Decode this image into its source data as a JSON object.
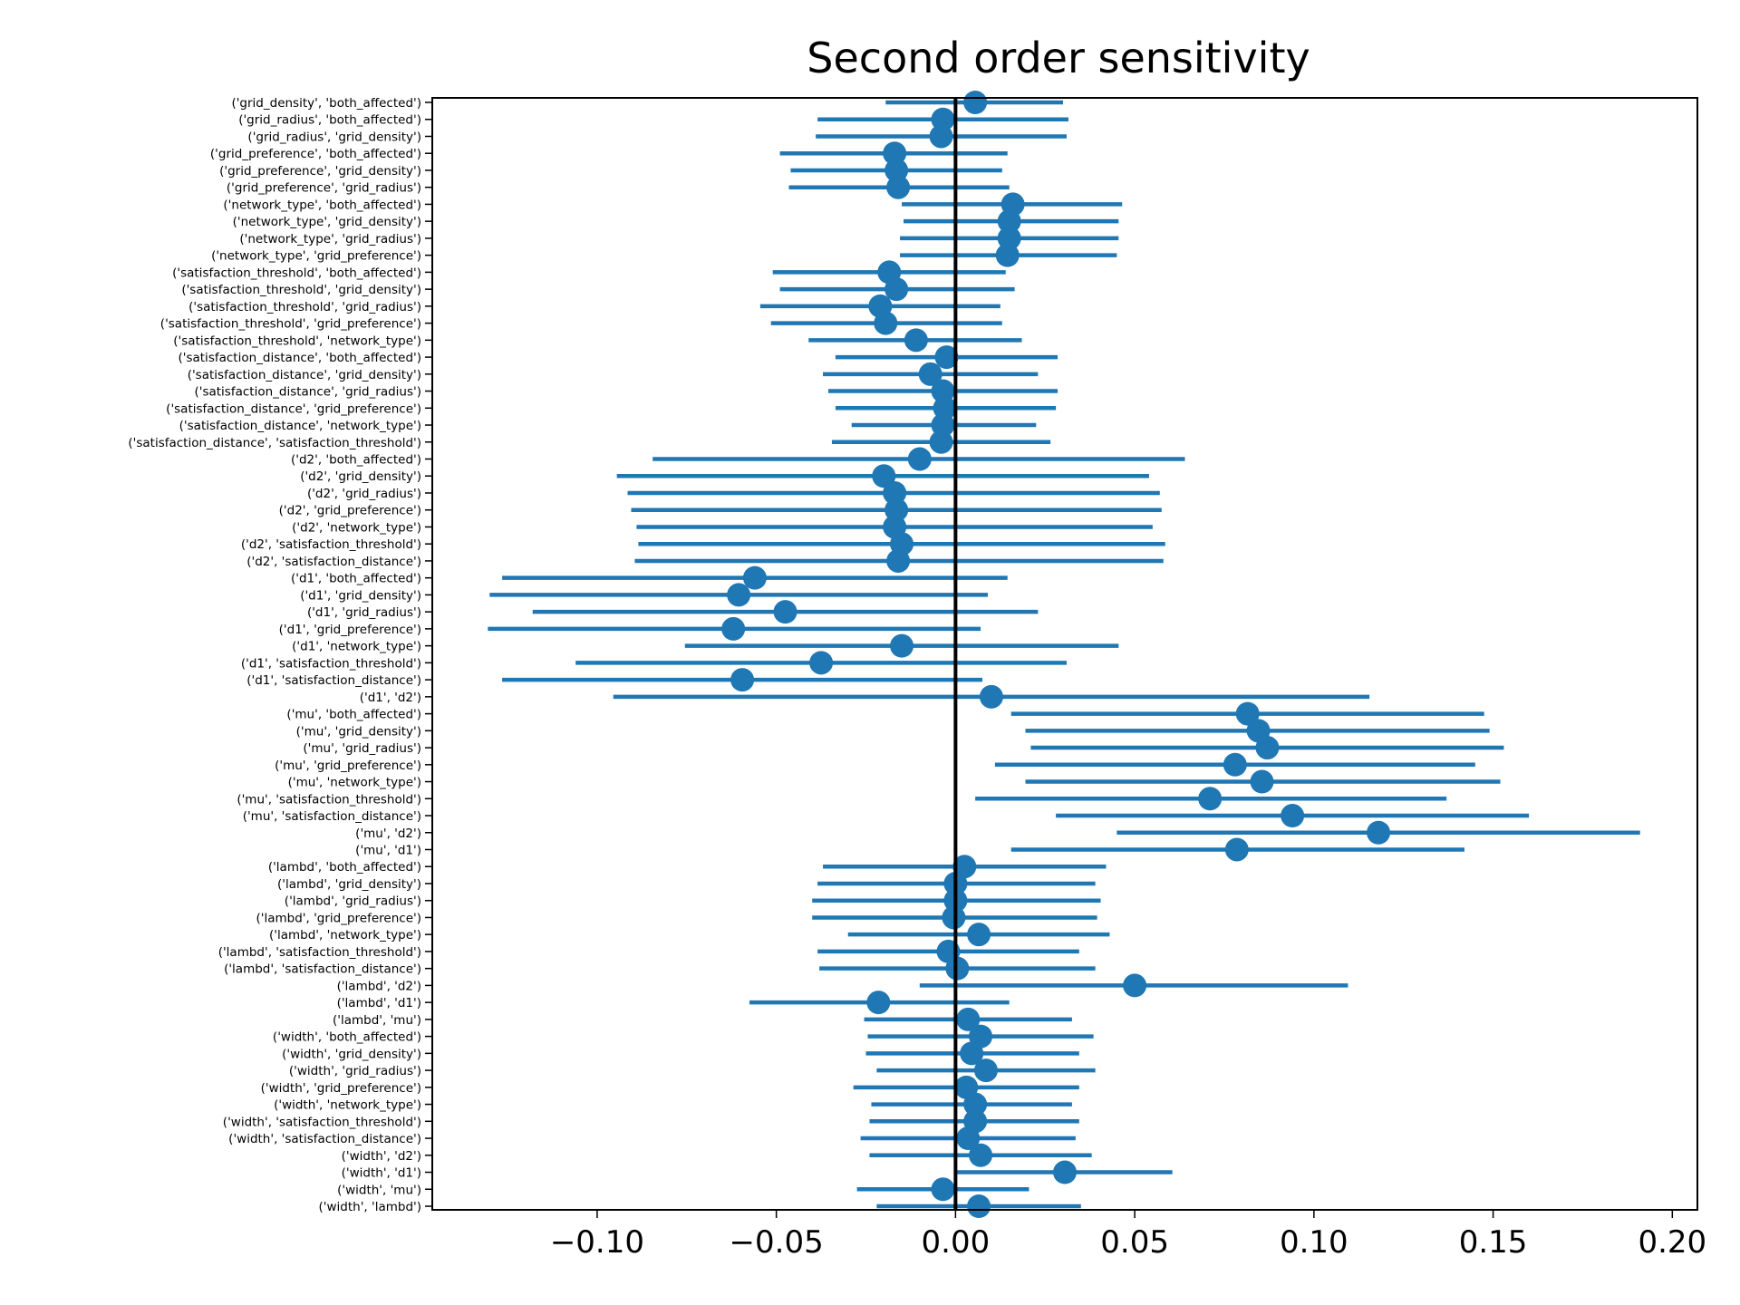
{
  "chart_data": {
    "type": "scatter",
    "title": "Second order sensitivity",
    "xlabel": "",
    "ylabel": "",
    "xlim": [
      -0.146,
      0.207
    ],
    "x_ticks": [
      "−0.10",
      "−0.05",
      "0.00",
      "0.05",
      "0.10",
      "0.15",
      "0.20"
    ],
    "x_tick_values": [
      -0.1,
      -0.05,
      0.0,
      0.05,
      0.1,
      0.15,
      0.2
    ],
    "reference_line_x": 0.0,
    "grid": false,
    "colors": {
      "marker": "#1f77b4",
      "errorbar": "#1f77b4",
      "zero_line": "#000000",
      "axes": "#000000"
    },
    "points": [
      {
        "label": "('grid_density', 'both_affected')",
        "value": 0.0055,
        "lo": -0.0195,
        "hi": 0.03
      },
      {
        "label": "('grid_radius', 'both_affected')",
        "value": -0.0035,
        "lo": -0.0385,
        "hi": 0.0315
      },
      {
        "label": "('grid_radius', 'grid_density')",
        "value": -0.004,
        "lo": -0.039,
        "hi": 0.031
      },
      {
        "label": "('grid_preference', 'both_affected')",
        "value": -0.017,
        "lo": -0.049,
        "hi": 0.0145
      },
      {
        "label": "('grid_preference', 'grid_density')",
        "value": -0.0165,
        "lo": -0.046,
        "hi": 0.013
      },
      {
        "label": "('grid_preference', 'grid_radius')",
        "value": -0.016,
        "lo": -0.0465,
        "hi": 0.015
      },
      {
        "label": "('network_type', 'both_affected')",
        "value": 0.016,
        "lo": -0.015,
        "hi": 0.0465
      },
      {
        "label": "('network_type', 'grid_density')",
        "value": 0.015,
        "lo": -0.0145,
        "hi": 0.0455
      },
      {
        "label": "('network_type', 'grid_radius')",
        "value": 0.015,
        "lo": -0.0155,
        "hi": 0.0455
      },
      {
        "label": "('network_type', 'grid_preference')",
        "value": 0.0145,
        "lo": -0.0155,
        "hi": 0.045
      },
      {
        "label": "('satisfaction_threshold', 'both_affected')",
        "value": -0.0185,
        "lo": -0.051,
        "hi": 0.014
      },
      {
        "label": "('satisfaction_threshold', 'grid_density')",
        "value": -0.0165,
        "lo": -0.049,
        "hi": 0.0165
      },
      {
        "label": "('satisfaction_threshold', 'grid_radius')",
        "value": -0.021,
        "lo": -0.0545,
        "hi": 0.0125
      },
      {
        "label": "('satisfaction_threshold', 'grid_preference')",
        "value": -0.0195,
        "lo": -0.0515,
        "hi": 0.013
      },
      {
        "label": "('satisfaction_threshold', 'network_type')",
        "value": -0.011,
        "lo": -0.041,
        "hi": 0.0185
      },
      {
        "label": "('satisfaction_distance', 'both_affected')",
        "value": -0.0025,
        "lo": -0.0335,
        "hi": 0.0285
      },
      {
        "label": "('satisfaction_distance', 'grid_density')",
        "value": -0.007,
        "lo": -0.037,
        "hi": 0.023
      },
      {
        "label": "('satisfaction_distance', 'grid_radius')",
        "value": -0.0035,
        "lo": -0.0355,
        "hi": 0.0285
      },
      {
        "label": "('satisfaction_distance', 'grid_preference')",
        "value": -0.003,
        "lo": -0.0335,
        "hi": 0.028
      },
      {
        "label": "('satisfaction_distance', 'network_type')",
        "value": -0.0035,
        "lo": -0.029,
        "hi": 0.0225
      },
      {
        "label": "('satisfaction_distance', 'satisfaction_threshold')",
        "value": -0.004,
        "lo": -0.0345,
        "hi": 0.0265
      },
      {
        "label": "('d2', 'both_affected')",
        "value": -0.01,
        "lo": -0.0845,
        "hi": 0.064
      },
      {
        "label": "('d2', 'grid_density')",
        "value": -0.02,
        "lo": -0.0945,
        "hi": 0.054
      },
      {
        "label": "('d2', 'grid_radius')",
        "value": -0.017,
        "lo": -0.0915,
        "hi": 0.057
      },
      {
        "label": "('d2', 'grid_preference')",
        "value": -0.0165,
        "lo": -0.0905,
        "hi": 0.0575
      },
      {
        "label": "('d2', 'network_type')",
        "value": -0.017,
        "lo": -0.089,
        "hi": 0.055
      },
      {
        "label": "('d2', 'satisfaction_threshold')",
        "value": -0.015,
        "lo": -0.0885,
        "hi": 0.0585
      },
      {
        "label": "('d2', 'satisfaction_distance')",
        "value": -0.016,
        "lo": -0.0895,
        "hi": 0.058
      },
      {
        "label": "('d1', 'both_affected')",
        "value": -0.056,
        "lo": -0.1265,
        "hi": 0.0145
      },
      {
        "label": "('d1', 'grid_density')",
        "value": -0.0605,
        "lo": -0.13,
        "hi": 0.009
      },
      {
        "label": "('d1', 'grid_radius')",
        "value": -0.0475,
        "lo": -0.118,
        "hi": 0.023
      },
      {
        "label": "('d1', 'grid_preference')",
        "value": -0.062,
        "lo": -0.1305,
        "hi": 0.007
      },
      {
        "label": "('d1', 'network_type')",
        "value": -0.015,
        "lo": -0.0755,
        "hi": 0.0455
      },
      {
        "label": "('d1', 'satisfaction_threshold')",
        "value": -0.0375,
        "lo": -0.106,
        "hi": 0.031
      },
      {
        "label": "('d1', 'satisfaction_distance')",
        "value": -0.0595,
        "lo": -0.1265,
        "hi": 0.0075
      },
      {
        "label": "('d1', 'd2')",
        "value": 0.01,
        "lo": -0.0955,
        "hi": 0.1155
      },
      {
        "label": "('mu', 'both_affected')",
        "value": 0.0815,
        "lo": 0.0155,
        "hi": 0.1475
      },
      {
        "label": "('mu', 'grid_density')",
        "value": 0.0845,
        "lo": 0.0195,
        "hi": 0.149
      },
      {
        "label": "('mu', 'grid_radius')",
        "value": 0.087,
        "lo": 0.021,
        "hi": 0.153
      },
      {
        "label": "('mu', 'grid_preference')",
        "value": 0.078,
        "lo": 0.011,
        "hi": 0.145
      },
      {
        "label": "('mu', 'network_type')",
        "value": 0.0855,
        "lo": 0.0195,
        "hi": 0.152
      },
      {
        "label": "('mu', 'satisfaction_threshold')",
        "value": 0.071,
        "lo": 0.0055,
        "hi": 0.137
      },
      {
        "label": "('mu', 'satisfaction_distance')",
        "value": 0.094,
        "lo": 0.028,
        "hi": 0.16
      },
      {
        "label": "('mu', 'd2')",
        "value": 0.118,
        "lo": 0.045,
        "hi": 0.191
      },
      {
        "label": "('mu', 'd1')",
        "value": 0.0785,
        "lo": 0.0155,
        "hi": 0.142
      },
      {
        "label": "('lambd', 'both_affected')",
        "value": 0.0025,
        "lo": -0.037,
        "hi": 0.042
      },
      {
        "label": "('lambd', 'grid_density')",
        "value": 0.0,
        "lo": -0.0385,
        "hi": 0.039
      },
      {
        "label": "('lambd', 'grid_radius')",
        "value": 0.0,
        "lo": -0.04,
        "hi": 0.0405
      },
      {
        "label": "('lambd', 'grid_preference')",
        "value": -0.0005,
        "lo": -0.04,
        "hi": 0.0395
      },
      {
        "label": "('lambd', 'network_type')",
        "value": 0.0065,
        "lo": -0.03,
        "hi": 0.043
      },
      {
        "label": "('lambd', 'satisfaction_threshold')",
        "value": -0.002,
        "lo": -0.0385,
        "hi": 0.0345
      },
      {
        "label": "('lambd', 'satisfaction_distance')",
        "value": 0.0005,
        "lo": -0.038,
        "hi": 0.039
      },
      {
        "label": "('lambd', 'd2')",
        "value": 0.05,
        "lo": -0.01,
        "hi": 0.1095
      },
      {
        "label": "('lambd', 'd1')",
        "value": -0.0215,
        "lo": -0.0575,
        "hi": 0.015
      },
      {
        "label": "('lambd', 'mu')",
        "value": 0.0035,
        "lo": -0.0255,
        "hi": 0.0325
      },
      {
        "label": "('width', 'both_affected')",
        "value": 0.007,
        "lo": -0.0245,
        "hi": 0.0385
      },
      {
        "label": "('width', 'grid_density')",
        "value": 0.0045,
        "lo": -0.025,
        "hi": 0.0345
      },
      {
        "label": "('width', 'grid_radius')",
        "value": 0.0085,
        "lo": -0.022,
        "hi": 0.039
      },
      {
        "label": "('width', 'grid_preference')",
        "value": 0.003,
        "lo": -0.0285,
        "hi": 0.0345
      },
      {
        "label": "('width', 'network_type')",
        "value": 0.0055,
        "lo": -0.0235,
        "hi": 0.0325
      },
      {
        "label": "('width', 'satisfaction_threshold')",
        "value": 0.0055,
        "lo": -0.024,
        "hi": 0.0345
      },
      {
        "label": "('width', 'satisfaction_distance')",
        "value": 0.0035,
        "lo": -0.0265,
        "hi": 0.0335
      },
      {
        "label": "('width', 'd2')",
        "value": 0.007,
        "lo": -0.024,
        "hi": 0.038
      },
      {
        "label": "('width', 'd1')",
        "value": 0.0305,
        "lo": 0.0,
        "hi": 0.0605
      },
      {
        "label": "('width', 'mu')",
        "value": -0.0035,
        "lo": -0.0275,
        "hi": 0.0205
      },
      {
        "label": "('width', 'lambd')",
        "value": 0.0065,
        "lo": -0.022,
        "hi": 0.035
      }
    ]
  }
}
